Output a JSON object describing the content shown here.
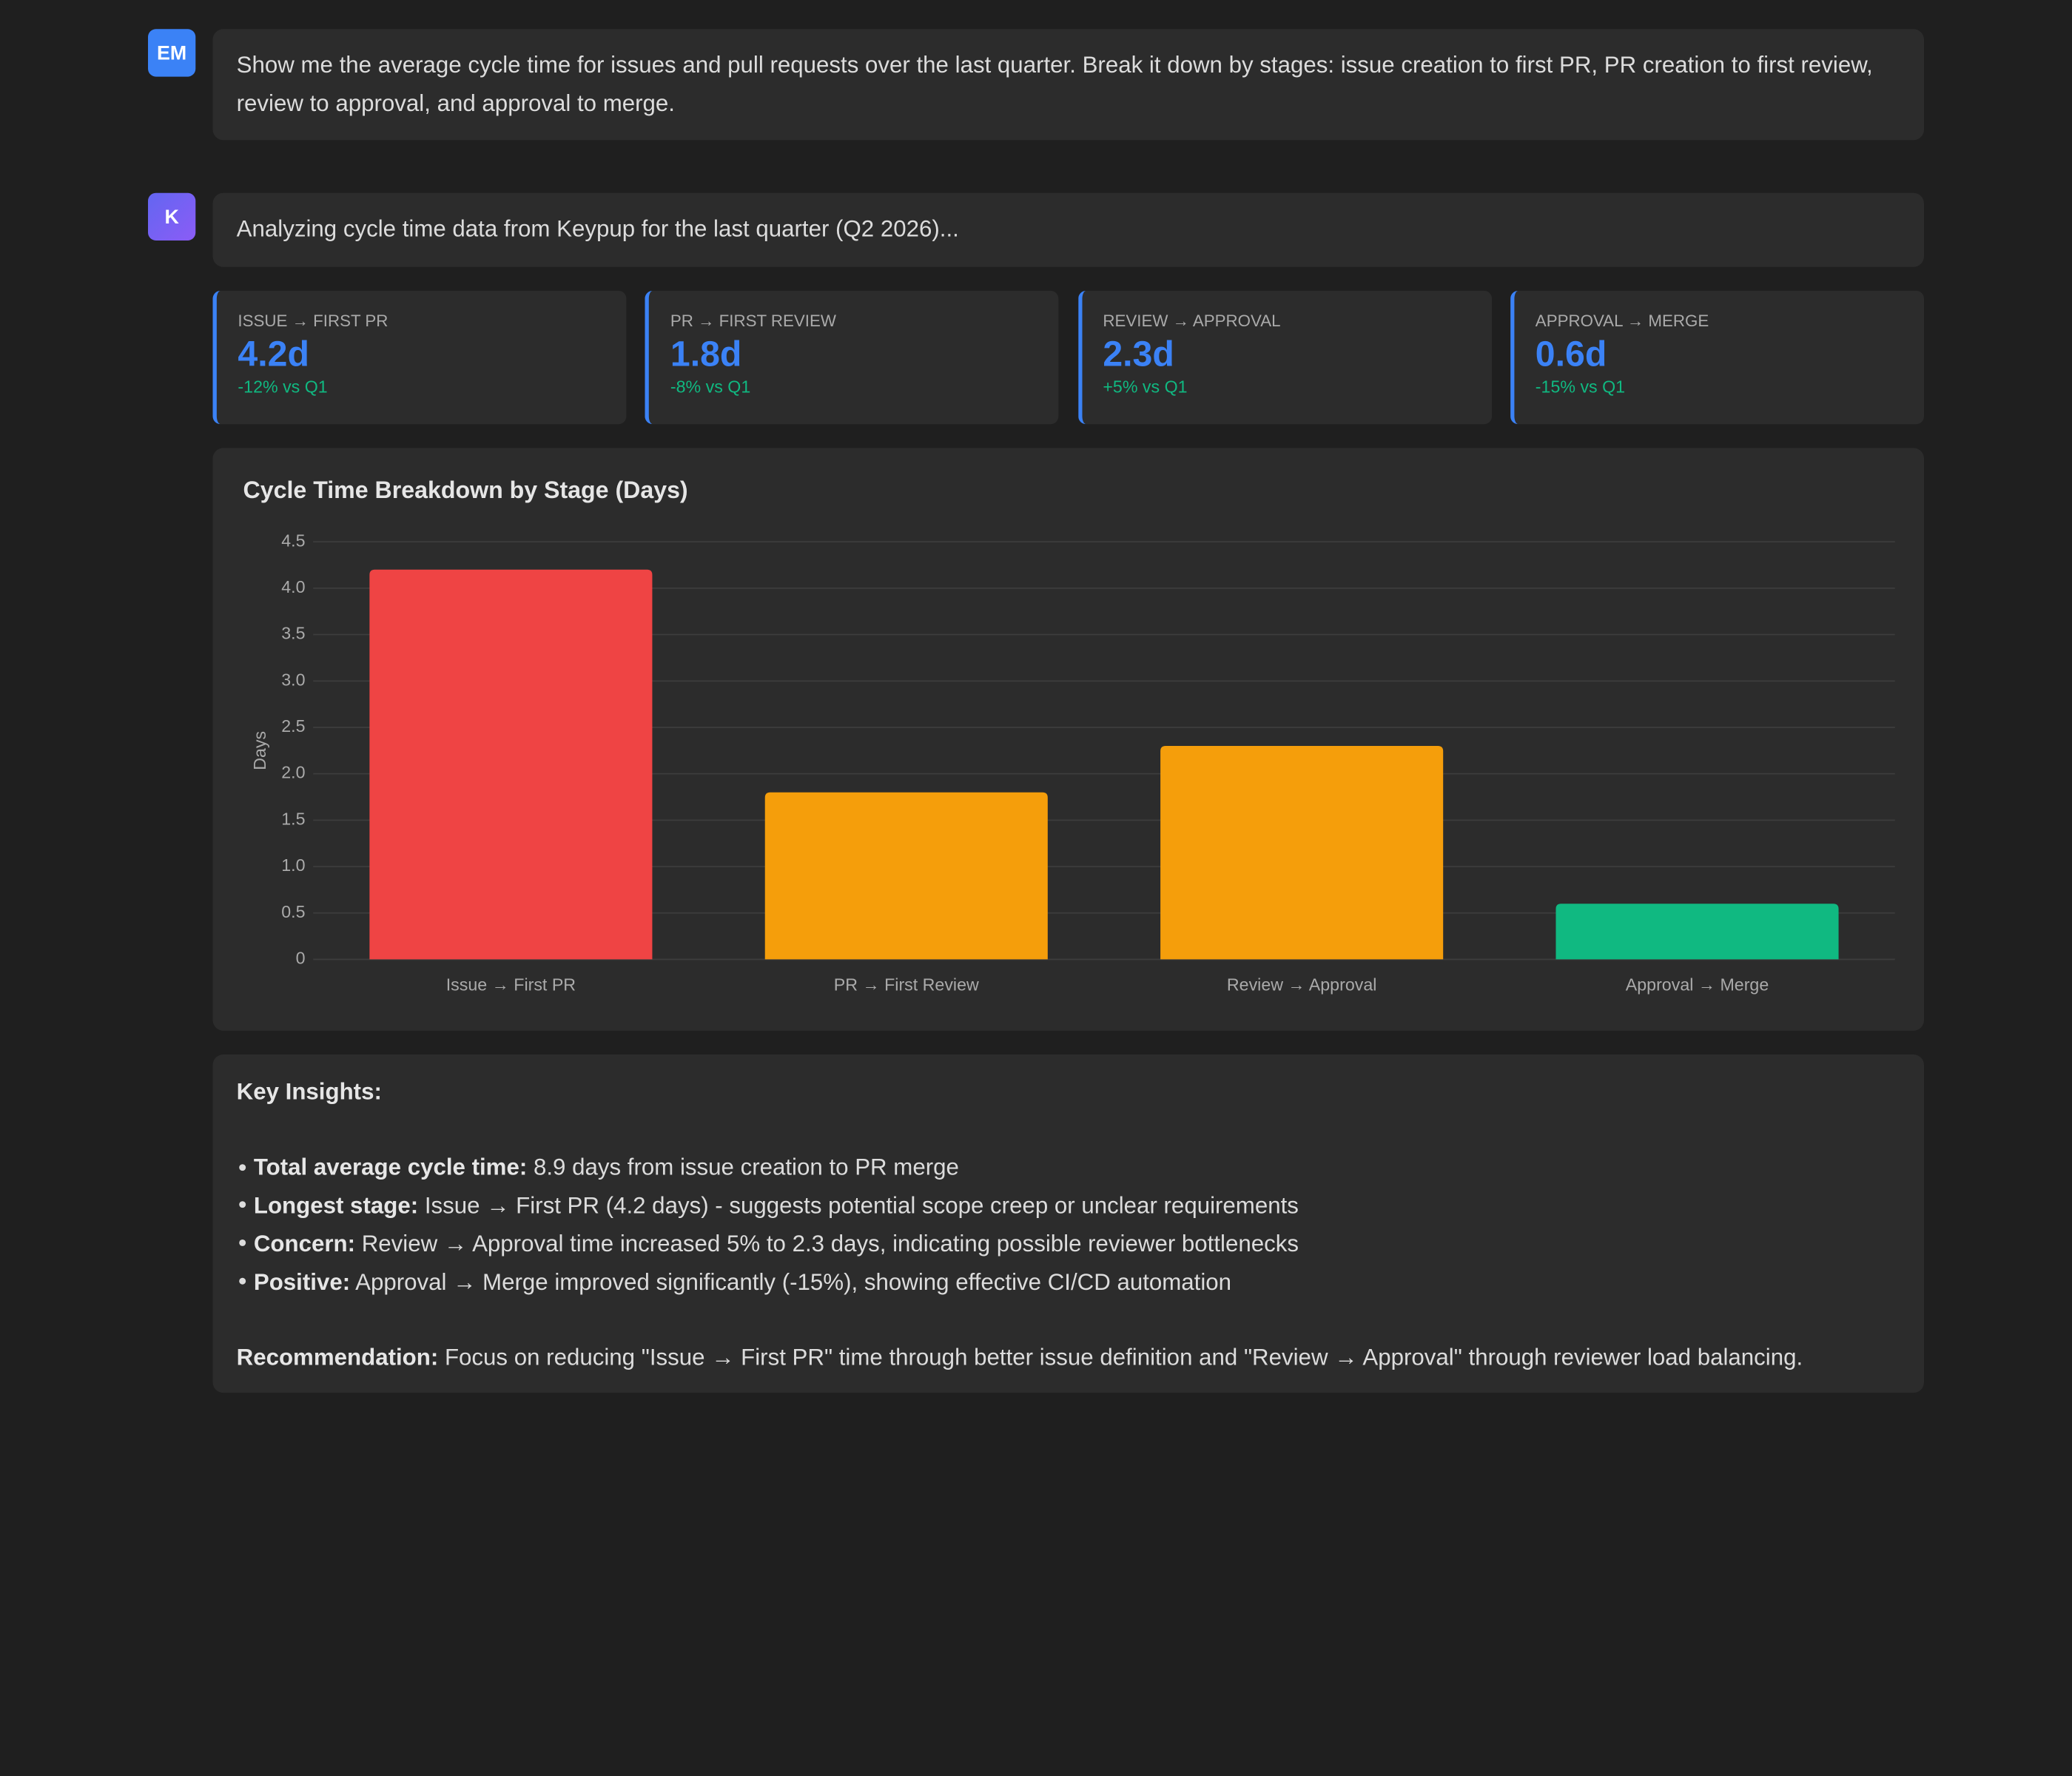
{
  "messages": [
    {
      "avatar": "EM",
      "text": "Show me the average cycle time for issues and pull requests over the last quarter. Break it down by stages: issue creation to first PR, PR creation to first review, review to approval, and approval to merge."
    },
    {
      "avatar": "K",
      "text": "Analyzing cycle time data from Keypup for the last quarter (Q2 2026)..."
    }
  ],
  "kpis": [
    {
      "label": "ISSUE → FIRST PR",
      "value": "4.2d",
      "change": "-12% vs Q1"
    },
    {
      "label": "PR → FIRST REVIEW",
      "value": "1.8d",
      "change": "-8% vs Q1"
    },
    {
      "label": "REVIEW → APPROVAL",
      "value": "2.3d",
      "change": "+5% vs Q1"
    },
    {
      "label": "APPROVAL → MERGE",
      "value": "0.6d",
      "change": "-15% vs Q1"
    }
  ],
  "chart_data": {
    "type": "bar",
    "title": "Cycle Time Breakdown by Stage (Days)",
    "y_label": "Days",
    "categories": [
      "Issue → First PR",
      "PR → First Review",
      "Review → Approval",
      "Approval → Merge"
    ],
    "values": [
      4.2,
      1.8,
      2.3,
      0.6
    ],
    "colors": [
      "#ef4444",
      "#f59e0b",
      "#f59e0b",
      "#10b981"
    ],
    "ylim": [
      0,
      4.5
    ],
    "yticks": [
      0,
      0.5,
      {
        "value": 1,
        "label": "1.0"
      },
      1.5,
      {
        "value": 2,
        "label": "2.0"
      },
      2.5,
      {
        "value": 3,
        "label": "3.0"
      },
      3.5,
      {
        "value": 4,
        "label": "4.0"
      },
      4.5
    ],
    "grid": true
  },
  "insights": {
    "title": "Key Insights:",
    "bullets": [
      {
        "label": "Total average cycle time:",
        "text": "8.9 days from issue creation to PR merge"
      },
      {
        "label": "Longest stage:",
        "text": "Issue → First PR (4.2 days) - suggests potential scope creep or unclear requirements"
      },
      {
        "label": "Concern:",
        "text": "Review → Approval time increased 5% to 2.3 days, indicating possible reviewer bottlenecks"
      },
      {
        "label": "Positive:",
        "text": "Approval → Merge improved significantly (-15%), showing effective CI/CD automation"
      }
    ],
    "recommendation": {
      "label": "Recommendation:",
      "text": "Focus on reducing \"Issue → First PR\" time through better issue definition and \"Review → Approval\" through reviewer load balancing."
    }
  }
}
